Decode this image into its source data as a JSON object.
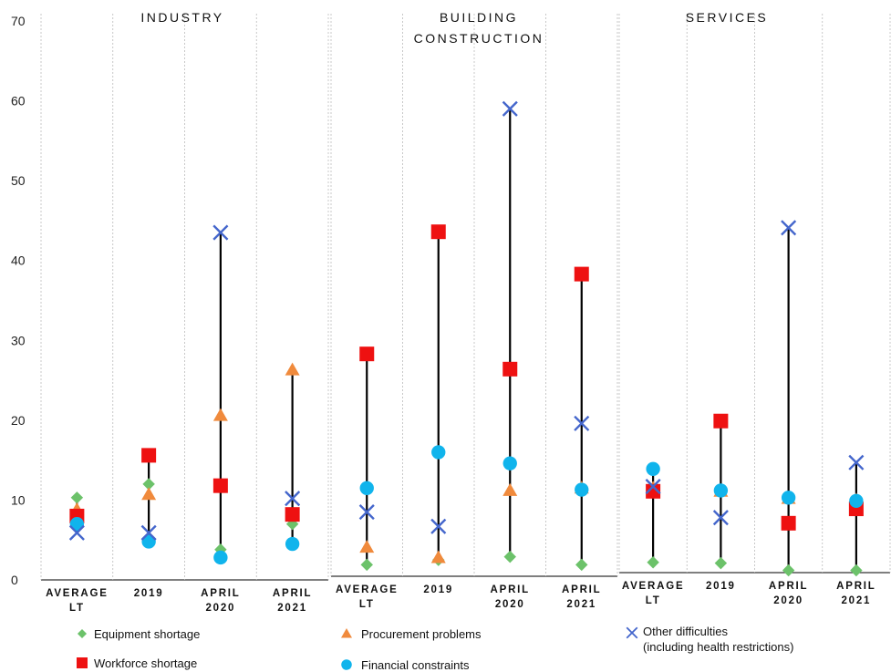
{
  "chart_data": {
    "type": "scatter",
    "ylim": [
      0,
      70
    ],
    "yticks": [
      "0",
      "10",
      "20",
      "30",
      "40",
      "50",
      "60",
      "70"
    ],
    "categories": [
      [
        "AVERAGE",
        "LT"
      ],
      [
        "2019"
      ],
      [
        "APRIL",
        "2020"
      ],
      [
        "APRIL",
        "2021"
      ]
    ],
    "panels": [
      {
        "title": [
          "INDUSTRY"
        ],
        "series": {
          "equipment": [
            10.3,
            12.0,
            3.8,
            7.0
          ],
          "workforce": [
            8.0,
            15.6,
            11.8,
            8.2
          ],
          "procurement": [
            8.8,
            10.7,
            20.6,
            26.3
          ],
          "financial": [
            7.0,
            4.8,
            2.8,
            4.5
          ],
          "other": [
            5.9,
            5.9,
            43.5,
            10.2
          ]
        }
      },
      {
        "title": [
          "BUILDING",
          "CONSTRUCTION"
        ],
        "series": {
          "equipment": [
            1.9,
            2.5,
            2.9,
            1.9
          ],
          "workforce": [
            28.3,
            43.6,
            26.4,
            38.3
          ],
          "procurement": [
            4.1,
            2.8,
            11.2,
            11.5
          ],
          "financial": [
            11.5,
            16.0,
            14.6,
            11.3
          ],
          "other": [
            8.5,
            6.7,
            59.0,
            19.6
          ]
        }
      },
      {
        "title": [
          "SERVICES"
        ],
        "series": {
          "equipment": [
            2.2,
            2.1,
            1.2,
            1.2
          ],
          "workforce": [
            11.1,
            19.9,
            7.1,
            8.9
          ],
          "procurement": [
            11.5,
            11.1,
            10.2,
            10.0
          ],
          "financial": [
            13.9,
            11.2,
            10.3,
            9.9
          ],
          "other": [
            11.7,
            7.8,
            44.1,
            14.7
          ]
        }
      }
    ],
    "legend": [
      {
        "key": "equipment",
        "label": "Equipment shortage",
        "marker": "diamond",
        "color": "#6cc26a"
      },
      {
        "key": "workforce",
        "label": "Workforce shortage",
        "marker": "square",
        "color": "#ee1111"
      },
      {
        "key": "procurement",
        "label": "Procurement problems",
        "marker": "triangle",
        "color": "#f08a3c"
      },
      {
        "key": "financial",
        "label": "Financial constraints",
        "marker": "circle",
        "color": "#10b4ec"
      },
      {
        "key": "other",
        "label": [
          "Other difficulties",
          "(including health restrictions)"
        ],
        "marker": "x",
        "color": "#4466cc"
      }
    ],
    "grid": "vertical dotted separators",
    "range_lines": true
  }
}
